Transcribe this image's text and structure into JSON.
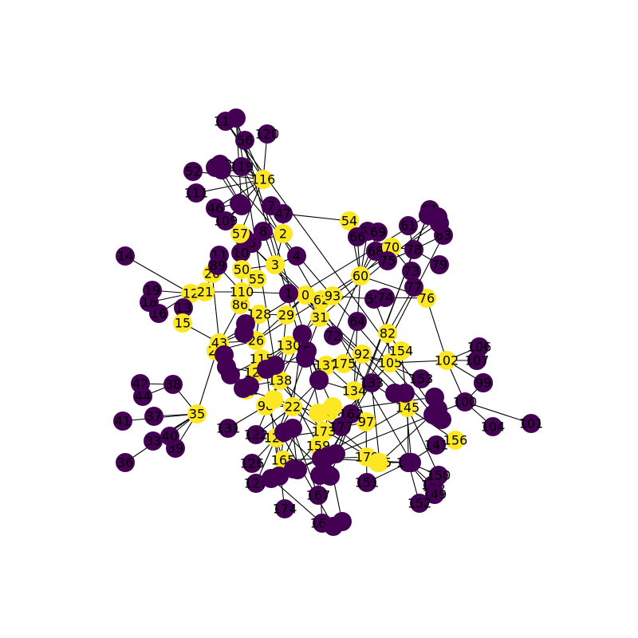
{
  "colors": {
    "purple": "#440154",
    "yellow": "#fde725",
    "edge": "#000000",
    "label": "#000000"
  },
  "graph": {
    "nodes": [
      {
        "id": "0",
        "c": "yellow"
      },
      {
        "id": "1",
        "c": "purple"
      },
      {
        "id": "2",
        "c": "yellow"
      },
      {
        "id": "3",
        "c": "yellow"
      },
      {
        "id": "4",
        "c": "purple"
      },
      {
        "id": "5",
        "c": "purple"
      },
      {
        "id": "6",
        "c": "purple"
      },
      {
        "id": "7",
        "c": "purple"
      },
      {
        "id": "8",
        "c": "purple"
      },
      {
        "id": "9",
        "c": "purple"
      },
      {
        "id": "10",
        "c": "purple"
      },
      {
        "id": "11",
        "c": "purple"
      },
      {
        "id": "12",
        "c": "yellow"
      },
      {
        "id": "13",
        "c": "purple"
      },
      {
        "id": "14",
        "c": "purple"
      },
      {
        "id": "15",
        "c": "yellow"
      },
      {
        "id": "16",
        "c": "purple"
      },
      {
        "id": "18",
        "c": "purple"
      },
      {
        "id": "19",
        "c": "purple"
      },
      {
        "id": "20",
        "c": "yellow"
      },
      {
        "id": "21",
        "c": "yellow"
      },
      {
        "id": "22",
        "c": "yellow"
      },
      {
        "id": "24",
        "c": "yellow"
      },
      {
        "id": "26",
        "c": "yellow"
      },
      {
        "id": "29",
        "c": "yellow"
      },
      {
        "id": "31",
        "c": "yellow"
      },
      {
        "id": "33",
        "c": "purple"
      },
      {
        "id": "35",
        "c": "yellow"
      },
      {
        "id": "36",
        "c": "purple"
      },
      {
        "id": "37",
        "c": "purple"
      },
      {
        "id": "38",
        "c": "purple"
      },
      {
        "id": "39",
        "c": "purple"
      },
      {
        "id": "40",
        "c": "purple"
      },
      {
        "id": "41",
        "c": "purple"
      },
      {
        "id": "42",
        "c": "purple"
      },
      {
        "id": "43",
        "c": "yellow"
      },
      {
        "id": "44",
        "c": "purple"
      },
      {
        "id": "46",
        "c": "purple"
      },
      {
        "id": "47",
        "c": "purple"
      },
      {
        "id": "50",
        "c": "yellow"
      },
      {
        "id": "52",
        "c": "purple"
      },
      {
        "id": "54",
        "c": "yellow"
      },
      {
        "id": "55",
        "c": "yellow"
      },
      {
        "id": "56",
        "c": "purple"
      },
      {
        "id": "57",
        "c": "yellow"
      },
      {
        "id": "59",
        "c": "purple"
      },
      {
        "id": "60",
        "c": "yellow"
      },
      {
        "id": "61",
        "c": "purple"
      },
      {
        "id": "62",
        "c": "yellow"
      },
      {
        "id": "64",
        "c": "purple"
      },
      {
        "id": "65",
        "c": "purple"
      },
      {
        "id": "66",
        "c": "purple"
      },
      {
        "id": "68",
        "c": "purple"
      },
      {
        "id": "69",
        "c": "purple"
      },
      {
        "id": "70",
        "c": "yellow"
      },
      {
        "id": "72",
        "c": "purple"
      },
      {
        "id": "73",
        "c": "purple"
      },
      {
        "id": "74",
        "c": "purple"
      },
      {
        "id": "75",
        "c": "purple"
      },
      {
        "id": "76",
        "c": "yellow"
      },
      {
        "id": "77",
        "c": "purple"
      },
      {
        "id": "78",
        "c": "purple"
      },
      {
        "id": "79",
        "c": "purple"
      },
      {
        "id": "81",
        "c": "purple"
      },
      {
        "id": "82",
        "c": "yellow"
      },
      {
        "id": "83",
        "c": "purple"
      },
      {
        "id": "86",
        "c": "yellow"
      },
      {
        "id": "89",
        "c": "purple"
      },
      {
        "id": "92",
        "c": "yellow"
      },
      {
        "id": "93",
        "c": "yellow"
      },
      {
        "id": "94",
        "c": "purple"
      },
      {
        "id": "96",
        "c": "purple"
      },
      {
        "id": "97",
        "c": "yellow"
      },
      {
        "id": "98",
        "c": "yellow"
      },
      {
        "id": "99",
        "c": "purple"
      },
      {
        "id": "100",
        "c": "purple"
      },
      {
        "id": "101",
        "c": "purple"
      },
      {
        "id": "102",
        "c": "yellow"
      },
      {
        "id": "104",
        "c": "purple"
      },
      {
        "id": "105",
        "c": "yellow"
      },
      {
        "id": "106",
        "c": "purple"
      },
      {
        "id": "107",
        "c": "purple"
      },
      {
        "id": "109",
        "c": "purple"
      },
      {
        "id": "110",
        "c": "yellow"
      },
      {
        "id": "111",
        "c": "purple"
      },
      {
        "id": "113",
        "c": "purple"
      },
      {
        "id": "115",
        "c": "yellow"
      },
      {
        "id": "116",
        "c": "yellow"
      },
      {
        "id": "118",
        "c": "purple"
      },
      {
        "id": "119",
        "c": "purple"
      },
      {
        "id": "120",
        "c": "purple"
      },
      {
        "id": "121",
        "c": "yellow"
      },
      {
        "id": "122",
        "c": "purple"
      },
      {
        "id": "123",
        "c": "yellow"
      },
      {
        "id": "124",
        "c": "yellow"
      },
      {
        "id": "126",
        "c": "purple"
      },
      {
        "id": "127",
        "c": "purple"
      },
      {
        "id": "128",
        "c": "yellow"
      },
      {
        "id": "130",
        "c": "yellow"
      },
      {
        "id": "131",
        "c": "purple"
      },
      {
        "id": "133",
        "c": "purple"
      },
      {
        "id": "134",
        "c": "yellow"
      },
      {
        "id": "137",
        "c": "yellow"
      },
      {
        "id": "138",
        "c": "yellow"
      },
      {
        "id": "140",
        "c": "purple"
      },
      {
        "id": "141",
        "c": "purple"
      },
      {
        "id": "145",
        "c": "yellow"
      },
      {
        "id": "148",
        "c": "purple"
      },
      {
        "id": "149",
        "c": "purple"
      },
      {
        "id": "150",
        "c": "purple"
      },
      {
        "id": "151",
        "c": "purple"
      },
      {
        "id": "152",
        "c": "purple"
      },
      {
        "id": "153",
        "c": "purple"
      },
      {
        "id": "154",
        "c": "yellow"
      },
      {
        "id": "155",
        "c": "yellow"
      },
      {
        "id": "156",
        "c": "yellow"
      },
      {
        "id": "159",
        "c": "yellow"
      },
      {
        "id": "160",
        "c": "purple"
      },
      {
        "id": "162",
        "c": "purple"
      },
      {
        "id": "164",
        "c": "yellow"
      },
      {
        "id": "165",
        "c": "yellow"
      },
      {
        "id": "166",
        "c": "purple"
      },
      {
        "id": "167",
        "c": "purple"
      },
      {
        "id": "173",
        "c": "yellow"
      },
      {
        "id": "174",
        "c": "purple"
      },
      {
        "id": "175",
        "c": "yellow"
      },
      {
        "id": "177",
        "c": "purple"
      },
      {
        "id": "179",
        "c": "yellow"
      },
      {
        "id": "",
        "c": "purple"
      },
      {
        "id": "",
        "c": "purple"
      },
      {
        "id": "",
        "c": "purple"
      },
      {
        "id": "",
        "c": "purple"
      },
      {
        "id": "",
        "c": "purple"
      },
      {
        "id": "",
        "c": "purple"
      },
      {
        "id": "",
        "c": "purple"
      },
      {
        "id": "",
        "c": "purple"
      },
      {
        "id": "",
        "c": "purple"
      },
      {
        "id": "",
        "c": "purple"
      },
      {
        "id": "",
        "c": "purple"
      },
      {
        "id": "",
        "c": "purple"
      },
      {
        "id": "",
        "c": "purple"
      },
      {
        "id": "",
        "c": "purple"
      },
      {
        "id": "",
        "c": "purple"
      },
      {
        "id": "",
        "c": "purple"
      },
      {
        "id": "",
        "c": "purple"
      },
      {
        "id": "",
        "c": "purple"
      },
      {
        "id": "",
        "c": "purple"
      },
      {
        "id": "",
        "c": "purple"
      },
      {
        "id": "",
        "c": "purple"
      },
      {
        "id": "",
        "c": "purple"
      },
      {
        "id": "",
        "c": "purple"
      },
      {
        "id": "",
        "c": "purple"
      },
      {
        "id": "",
        "c": "purple"
      },
      {
        "id": "",
        "c": "purple"
      },
      {
        "id": "",
        "c": "purple"
      },
      {
        "id": "",
        "c": "purple"
      },
      {
        "id": "",
        "c": "purple"
      },
      {
        "id": "",
        "c": "purple"
      },
      {
        "id": "",
        "c": "purple"
      },
      {
        "id": "",
        "c": "purple"
      },
      {
        "id": "",
        "c": "purple"
      },
      {
        "id": "",
        "c": "purple"
      },
      {
        "id": "",
        "c": "purple"
      },
      {
        "id": "",
        "c": "purple"
      },
      {
        "id": "",
        "c": "purple"
      },
      {
        "id": "",
        "c": "purple"
      },
      {
        "id": "",
        "c": "purple"
      },
      {
        "id": "",
        "c": "purple"
      },
      {
        "id": "",
        "c": "yellow"
      },
      {
        "id": "",
        "c": "yellow"
      },
      {
        "id": "",
        "c": "yellow"
      },
      {
        "id": "",
        "c": "yellow"
      }
    ],
    "edges": [
      [
        "0",
        "62"
      ],
      [
        "0",
        "31"
      ],
      [
        "0",
        "1"
      ],
      [
        "0",
        "29"
      ],
      [
        "0",
        "3"
      ],
      [
        "0",
        "26"
      ],
      [
        "62",
        "93"
      ],
      [
        "62",
        "31"
      ],
      [
        "93",
        "60"
      ],
      [
        "93",
        "59"
      ],
      [
        "60",
        "66"
      ],
      [
        "60",
        "65"
      ],
      [
        "60",
        "69"
      ],
      [
        "60",
        "68"
      ],
      [
        "60",
        "70"
      ],
      [
        "60",
        "64"
      ],
      [
        "60",
        "72"
      ],
      [
        "70",
        "78"
      ],
      [
        "70",
        "73"
      ],
      [
        "78",
        "81"
      ],
      [
        "78",
        "83"
      ],
      [
        "78",
        "75"
      ],
      [
        "78",
        "79"
      ],
      [
        "78",
        "61"
      ],
      [
        "76",
        "73"
      ],
      [
        "76",
        "102"
      ],
      [
        "76",
        "74"
      ],
      [
        "59",
        "74"
      ],
      [
        "59",
        "82"
      ],
      [
        "82",
        "105"
      ],
      [
        "82",
        "154"
      ],
      [
        "82",
        "77"
      ],
      [
        "105",
        "92"
      ],
      [
        "105",
        "102"
      ],
      [
        "105",
        "133"
      ],
      [
        "102",
        "106"
      ],
      [
        "102",
        "107"
      ],
      [
        "102",
        "99"
      ],
      [
        "102",
        "100"
      ],
      [
        "100",
        "104"
      ],
      [
        "100",
        "101"
      ],
      [
        "100",
        "96"
      ],
      [
        "99",
        "96"
      ],
      [
        "145",
        "154"
      ],
      [
        "145",
        "140"
      ],
      [
        "145",
        "156"
      ],
      [
        "145",
        "133"
      ],
      [
        "140",
        "150"
      ],
      [
        "140",
        "148"
      ],
      [
        "140",
        "149"
      ],
      [
        "140",
        "152"
      ],
      [
        "140",
        "141"
      ],
      [
        "140",
        "155"
      ],
      [
        "140",
        "151"
      ],
      [
        "155",
        "179"
      ],
      [
        "134",
        "92"
      ],
      [
        "134",
        "133"
      ],
      [
        "134",
        "97"
      ],
      [
        "134",
        "137"
      ],
      [
        "175",
        "137"
      ],
      [
        "175",
        "92"
      ],
      [
        "175",
        "64"
      ],
      [
        "137",
        "130"
      ],
      [
        "137",
        "115"
      ],
      [
        "137",
        "94"
      ],
      [
        "138",
        "122"
      ],
      [
        "138",
        "98"
      ],
      [
        "138",
        "124"
      ],
      [
        "22",
        "98"
      ],
      [
        "22",
        "123"
      ],
      [
        "123",
        "127"
      ],
      [
        "123",
        "126"
      ],
      [
        "123",
        "165"
      ],
      [
        "123",
        "174"
      ],
      [
        "173",
        "159"
      ],
      [
        "173",
        "160"
      ],
      [
        "173",
        "164"
      ],
      [
        "173",
        "97"
      ],
      [
        "159",
        "167"
      ],
      [
        "159",
        "166"
      ],
      [
        "164",
        "162"
      ],
      [
        "164",
        "177"
      ],
      [
        "110",
        "21"
      ],
      [
        "110",
        "86"
      ],
      [
        "110",
        "55"
      ],
      [
        "110",
        "50"
      ],
      [
        "21",
        "12"
      ],
      [
        "12",
        "14"
      ],
      [
        "12",
        "15"
      ],
      [
        "12",
        "13"
      ],
      [
        "12",
        "16"
      ],
      [
        "12",
        "18"
      ],
      [
        "12",
        "19"
      ],
      [
        "43",
        "20"
      ],
      [
        "43",
        "15"
      ],
      [
        "43",
        "35"
      ],
      [
        "43",
        "24"
      ],
      [
        "43",
        "26"
      ],
      [
        "35",
        "38"
      ],
      [
        "35",
        "37"
      ],
      [
        "35",
        "33"
      ],
      [
        "35",
        "40"
      ],
      [
        "35",
        "39"
      ],
      [
        "35",
        "41"
      ],
      [
        "35",
        "36"
      ],
      [
        "38",
        "42"
      ],
      [
        "38",
        "44"
      ],
      [
        "50",
        "3"
      ],
      [
        "50",
        "10"
      ],
      [
        "50",
        "57"
      ],
      [
        "3",
        "2"
      ],
      [
        "3",
        "4"
      ],
      [
        "3",
        "8"
      ],
      [
        "2",
        "47"
      ],
      [
        "2",
        "6"
      ],
      [
        "47",
        "54"
      ],
      [
        "47",
        "7"
      ],
      [
        "57",
        "116"
      ],
      [
        "57",
        "9"
      ],
      [
        "116",
        "119"
      ],
      [
        "116",
        "113"
      ],
      [
        "116",
        "52"
      ],
      [
        "116",
        "56"
      ],
      [
        "116",
        "118"
      ],
      [
        "116",
        "111"
      ],
      [
        "116",
        "109"
      ],
      [
        "116",
        "120"
      ],
      [
        "116",
        "46"
      ],
      [
        "86",
        "128"
      ],
      [
        "86",
        "43"
      ],
      [
        "128",
        "29"
      ],
      [
        "128",
        "26"
      ],
      [
        "31",
        "92"
      ],
      [
        "31",
        "5"
      ],
      [
        "130",
        "121"
      ],
      [
        "121",
        "124"
      ],
      [
        "115",
        "124"
      ],
      [
        "54",
        "60"
      ],
      [
        "165",
        "179"
      ],
      [
        "26",
        "24"
      ],
      [
        "15",
        "13"
      ],
      [
        "89",
        "110"
      ],
      [
        "20",
        "21"
      ],
      [
        "98",
        "131"
      ],
      [
        "1",
        "110"
      ],
      [
        "155",
        "133"
      ],
      [
        "92",
        "153"
      ],
      [
        "133",
        "175"
      ],
      [
        "150",
        "145"
      ],
      [
        "64",
        "134"
      ],
      [
        "97",
        "151"
      ],
      [
        "130",
        "5"
      ],
      [
        "122",
        "22"
      ],
      [
        "29",
        "138"
      ],
      [
        "5",
        "173"
      ],
      [
        "62",
        "138"
      ],
      [
        "22",
        "94"
      ],
      [
        "94",
        "134"
      ],
      [
        "173",
        "123"
      ],
      [
        "60",
        "76"
      ]
    ]
  }
}
